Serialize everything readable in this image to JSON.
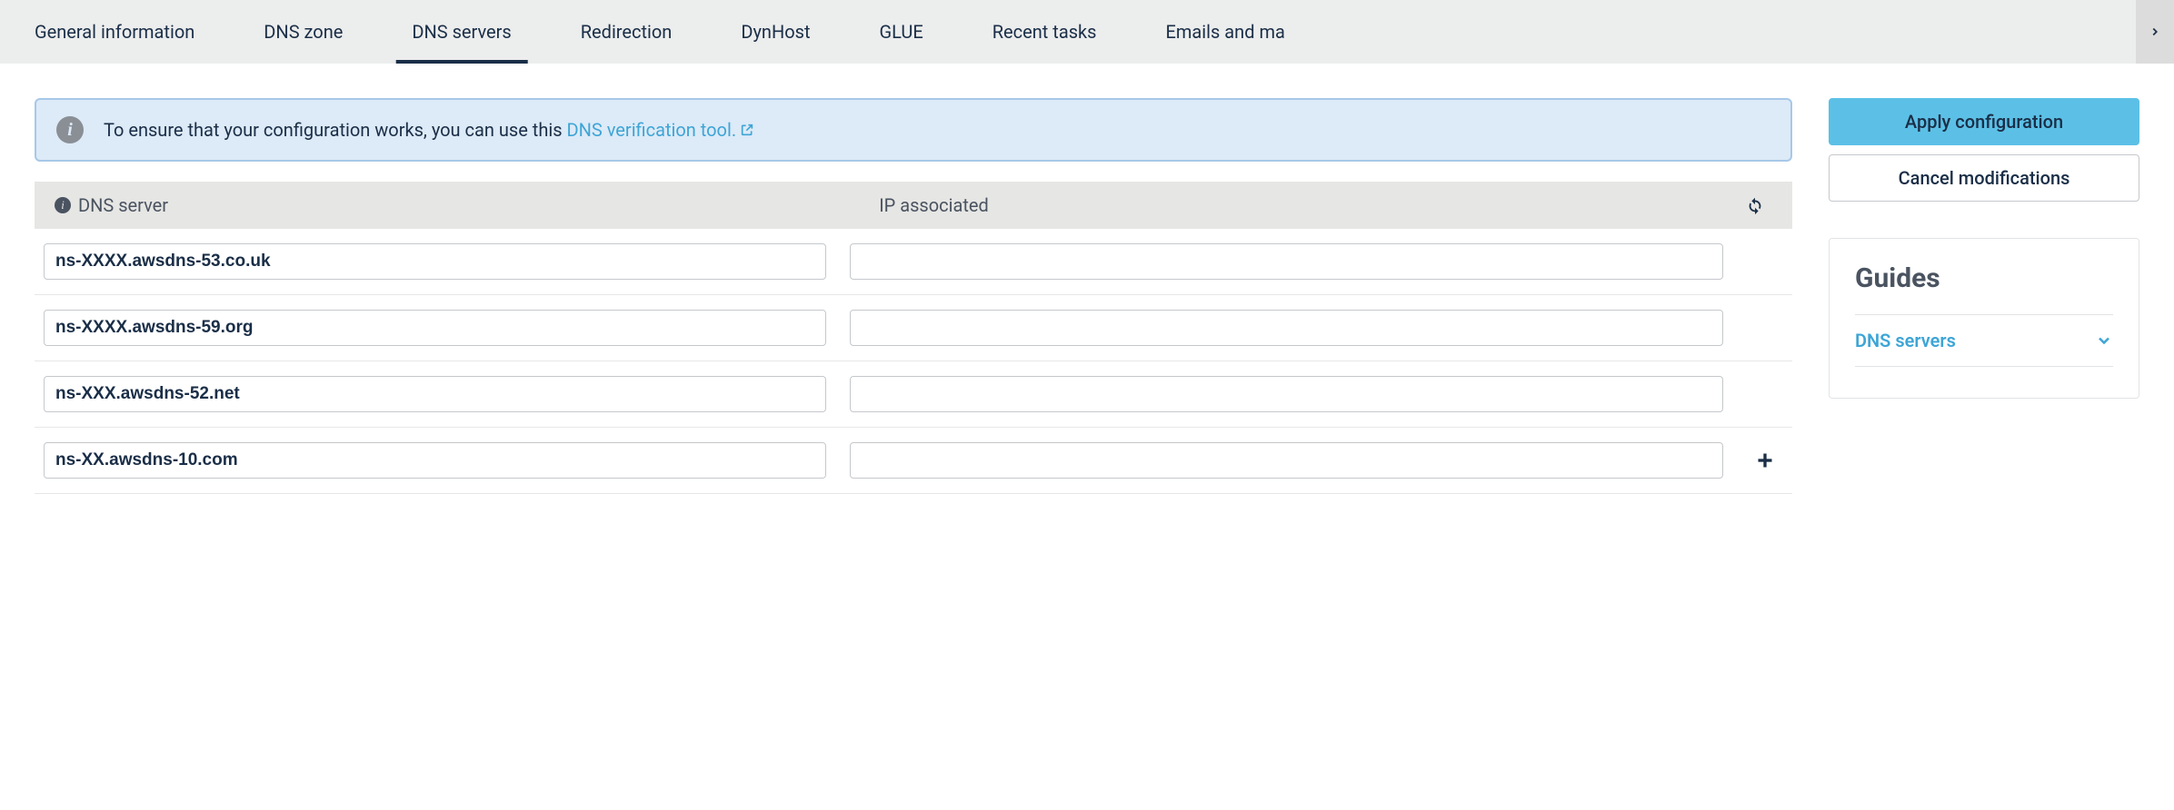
{
  "tabs": [
    {
      "label": "General information",
      "active": false
    },
    {
      "label": "DNS zone",
      "active": false
    },
    {
      "label": "DNS servers",
      "active": true
    },
    {
      "label": "Redirection",
      "active": false
    },
    {
      "label": "DynHost",
      "active": false
    },
    {
      "label": "GLUE",
      "active": false
    },
    {
      "label": "Recent tasks",
      "active": false
    },
    {
      "label": "Emails and ma",
      "active": false
    }
  ],
  "banner": {
    "text_before_link": "To ensure that your configuration works, you can use this ",
    "link_text": "DNS verification tool."
  },
  "table": {
    "header_dns": "DNS server",
    "header_ip": "IP associated",
    "rows": [
      {
        "dns": "ns-XXXX.awsdns-53.co.uk",
        "ip": "",
        "show_add": false
      },
      {
        "dns": "ns-XXXX.awsdns-59.org",
        "ip": "",
        "show_add": false
      },
      {
        "dns": "ns-XXX.awsdns-52.net",
        "ip": "",
        "show_add": false
      },
      {
        "dns": "ns-XX.awsdns-10.com",
        "ip": "",
        "show_add": true
      }
    ]
  },
  "sidebar": {
    "apply_label": "Apply configuration",
    "cancel_label": "Cancel modifications",
    "guides_title": "Guides",
    "guide_item_label": "DNS servers"
  },
  "colors": {
    "tabbar_bg": "#eceded",
    "text_primary": "#1a2e47",
    "banner_bg": "#ddeaf7",
    "banner_border": "#a7c8e8",
    "link": "#3ea5d6",
    "btn_primary_bg": "#5cc0e6",
    "table_header_bg": "#e6e6e4",
    "border_gray": "#c5c8cc"
  }
}
